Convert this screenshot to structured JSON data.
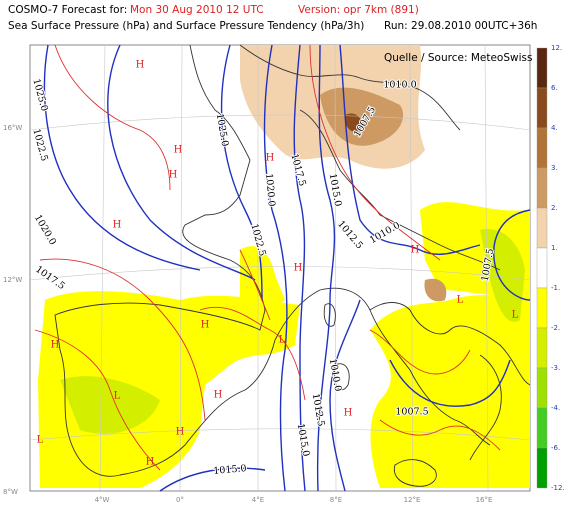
{
  "header": {
    "forecast_label": "COSMO-7 Forecast for:",
    "forecast_time": "Mon 30 Aug 2010 12 UTC",
    "version": "Version: opr 7km (891)",
    "subtitle": "Sea Surface Pressure (hPa)  and  Surface Pressure Tendency (hPa/3h)",
    "run": "Run: 29.08.2010 00UTC+36h"
  },
  "source": "Quelle / Source: MeteoSwiss",
  "scale": {
    "labels": [
      "12.",
      "6.",
      "4.",
      "3.",
      "2.",
      "1.",
      "-1.",
      "-2.",
      "-3.",
      "-4.",
      "-6.",
      "-12."
    ],
    "colors": [
      "#5a2810",
      "#8a4a1e",
      "#b27436",
      "#cc9a62",
      "#f2d3ae",
      "#ffffff",
      "#ffff00",
      "#d4ee00",
      "#9ee000",
      "#44cc22",
      "#00a000"
    ]
  },
  "lat_labels": [
    "16°W",
    "12°W",
    "8°W"
  ],
  "lon_labels": [
    "4°W",
    "0°",
    "4°E",
    "8°E",
    "12°E",
    "16°E"
  ],
  "isobar_labels": [
    "1025.0",
    "1022.5",
    "1020.0",
    "1017.5",
    "1025.0",
    "1022.5",
    "1020.0",
    "1017.5",
    "1015.0",
    "1012.5",
    "1010.0",
    "1007.5",
    "1010.0",
    "1007.5",
    "1010.0",
    "1012.5",
    "1015.0",
    "1015.0",
    "1007.5"
  ],
  "centers": [
    "H",
    "H",
    "H",
    "H",
    "H",
    "H",
    "H",
    "H",
    "H",
    "H",
    "H",
    "H",
    "H",
    "L",
    "L",
    "L",
    "L",
    "L"
  ]
}
